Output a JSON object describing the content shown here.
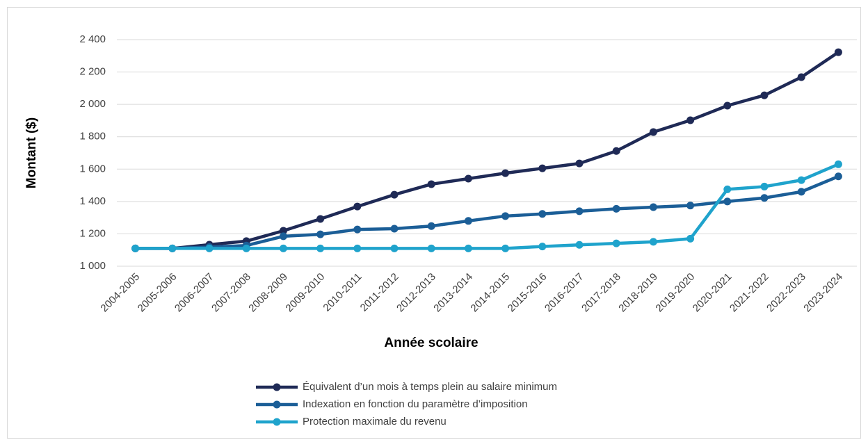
{
  "chart_data": {
    "type": "line",
    "x_label": "Année scolaire",
    "y_label": "Montant ($)",
    "categories": [
      "2004-2005",
      "2005-2006",
      "2006-2007",
      "2007-2008",
      "2008-2009",
      "2009-2010",
      "2010-2011",
      "2011-2012",
      "2012-2013",
      "2013-2014",
      "2014-2015",
      "2015-2016",
      "2016-2017",
      "2017-2018",
      "2018-2019",
      "2019-2020",
      "2020-2021",
      "2021-2022",
      "2022-2023",
      "2023-2024"
    ],
    "series": [
      {
        "name": "Équivalent d’un mois à temps plein au salaire minimum",
        "color": "#1f2a56",
        "values": [
          1110,
          1110,
          1133,
          1155,
          1219,
          1292,
          1369,
          1442,
          1507,
          1541,
          1575,
          1605,
          1635,
          1712,
          1829,
          1902,
          1992,
          2056,
          2168,
          2322
        ]
      },
      {
        "name": "Indexation en fonction du paramètre d’imposition",
        "color": "#1b5e97",
        "values": [
          1110,
          1110,
          1118,
          1128,
          1185,
          1197,
          1227,
          1232,
          1248,
          1280,
          1310,
          1323,
          1340,
          1355,
          1365,
          1375,
          1400,
          1422,
          1460,
          1555
        ]
      },
      {
        "name": "Protection maximale du revenu",
        "color": "#1fa3cc",
        "values": [
          1110,
          1110,
          1110,
          1110,
          1110,
          1110,
          1110,
          1110,
          1110,
          1110,
          1110,
          1122,
          1132,
          1141,
          1151,
          1170,
          1475,
          1492,
          1532,
          1630
        ]
      }
    ],
    "ylim": [
      1000,
      2400
    ],
    "yticks": [
      {
        "value": 1000,
        "label": "1 000"
      },
      {
        "value": 1200,
        "label": "1 200"
      },
      {
        "value": 1400,
        "label": "1 400"
      },
      {
        "value": 1600,
        "label": "1 600"
      },
      {
        "value": 1800,
        "label": "1 800"
      },
      {
        "value": 2000,
        "label": "2 000"
      },
      {
        "value": 2200,
        "label": "2 200"
      },
      {
        "value": 2400,
        "label": "2 400"
      }
    ],
    "grid": true,
    "legend": "bottom"
  }
}
